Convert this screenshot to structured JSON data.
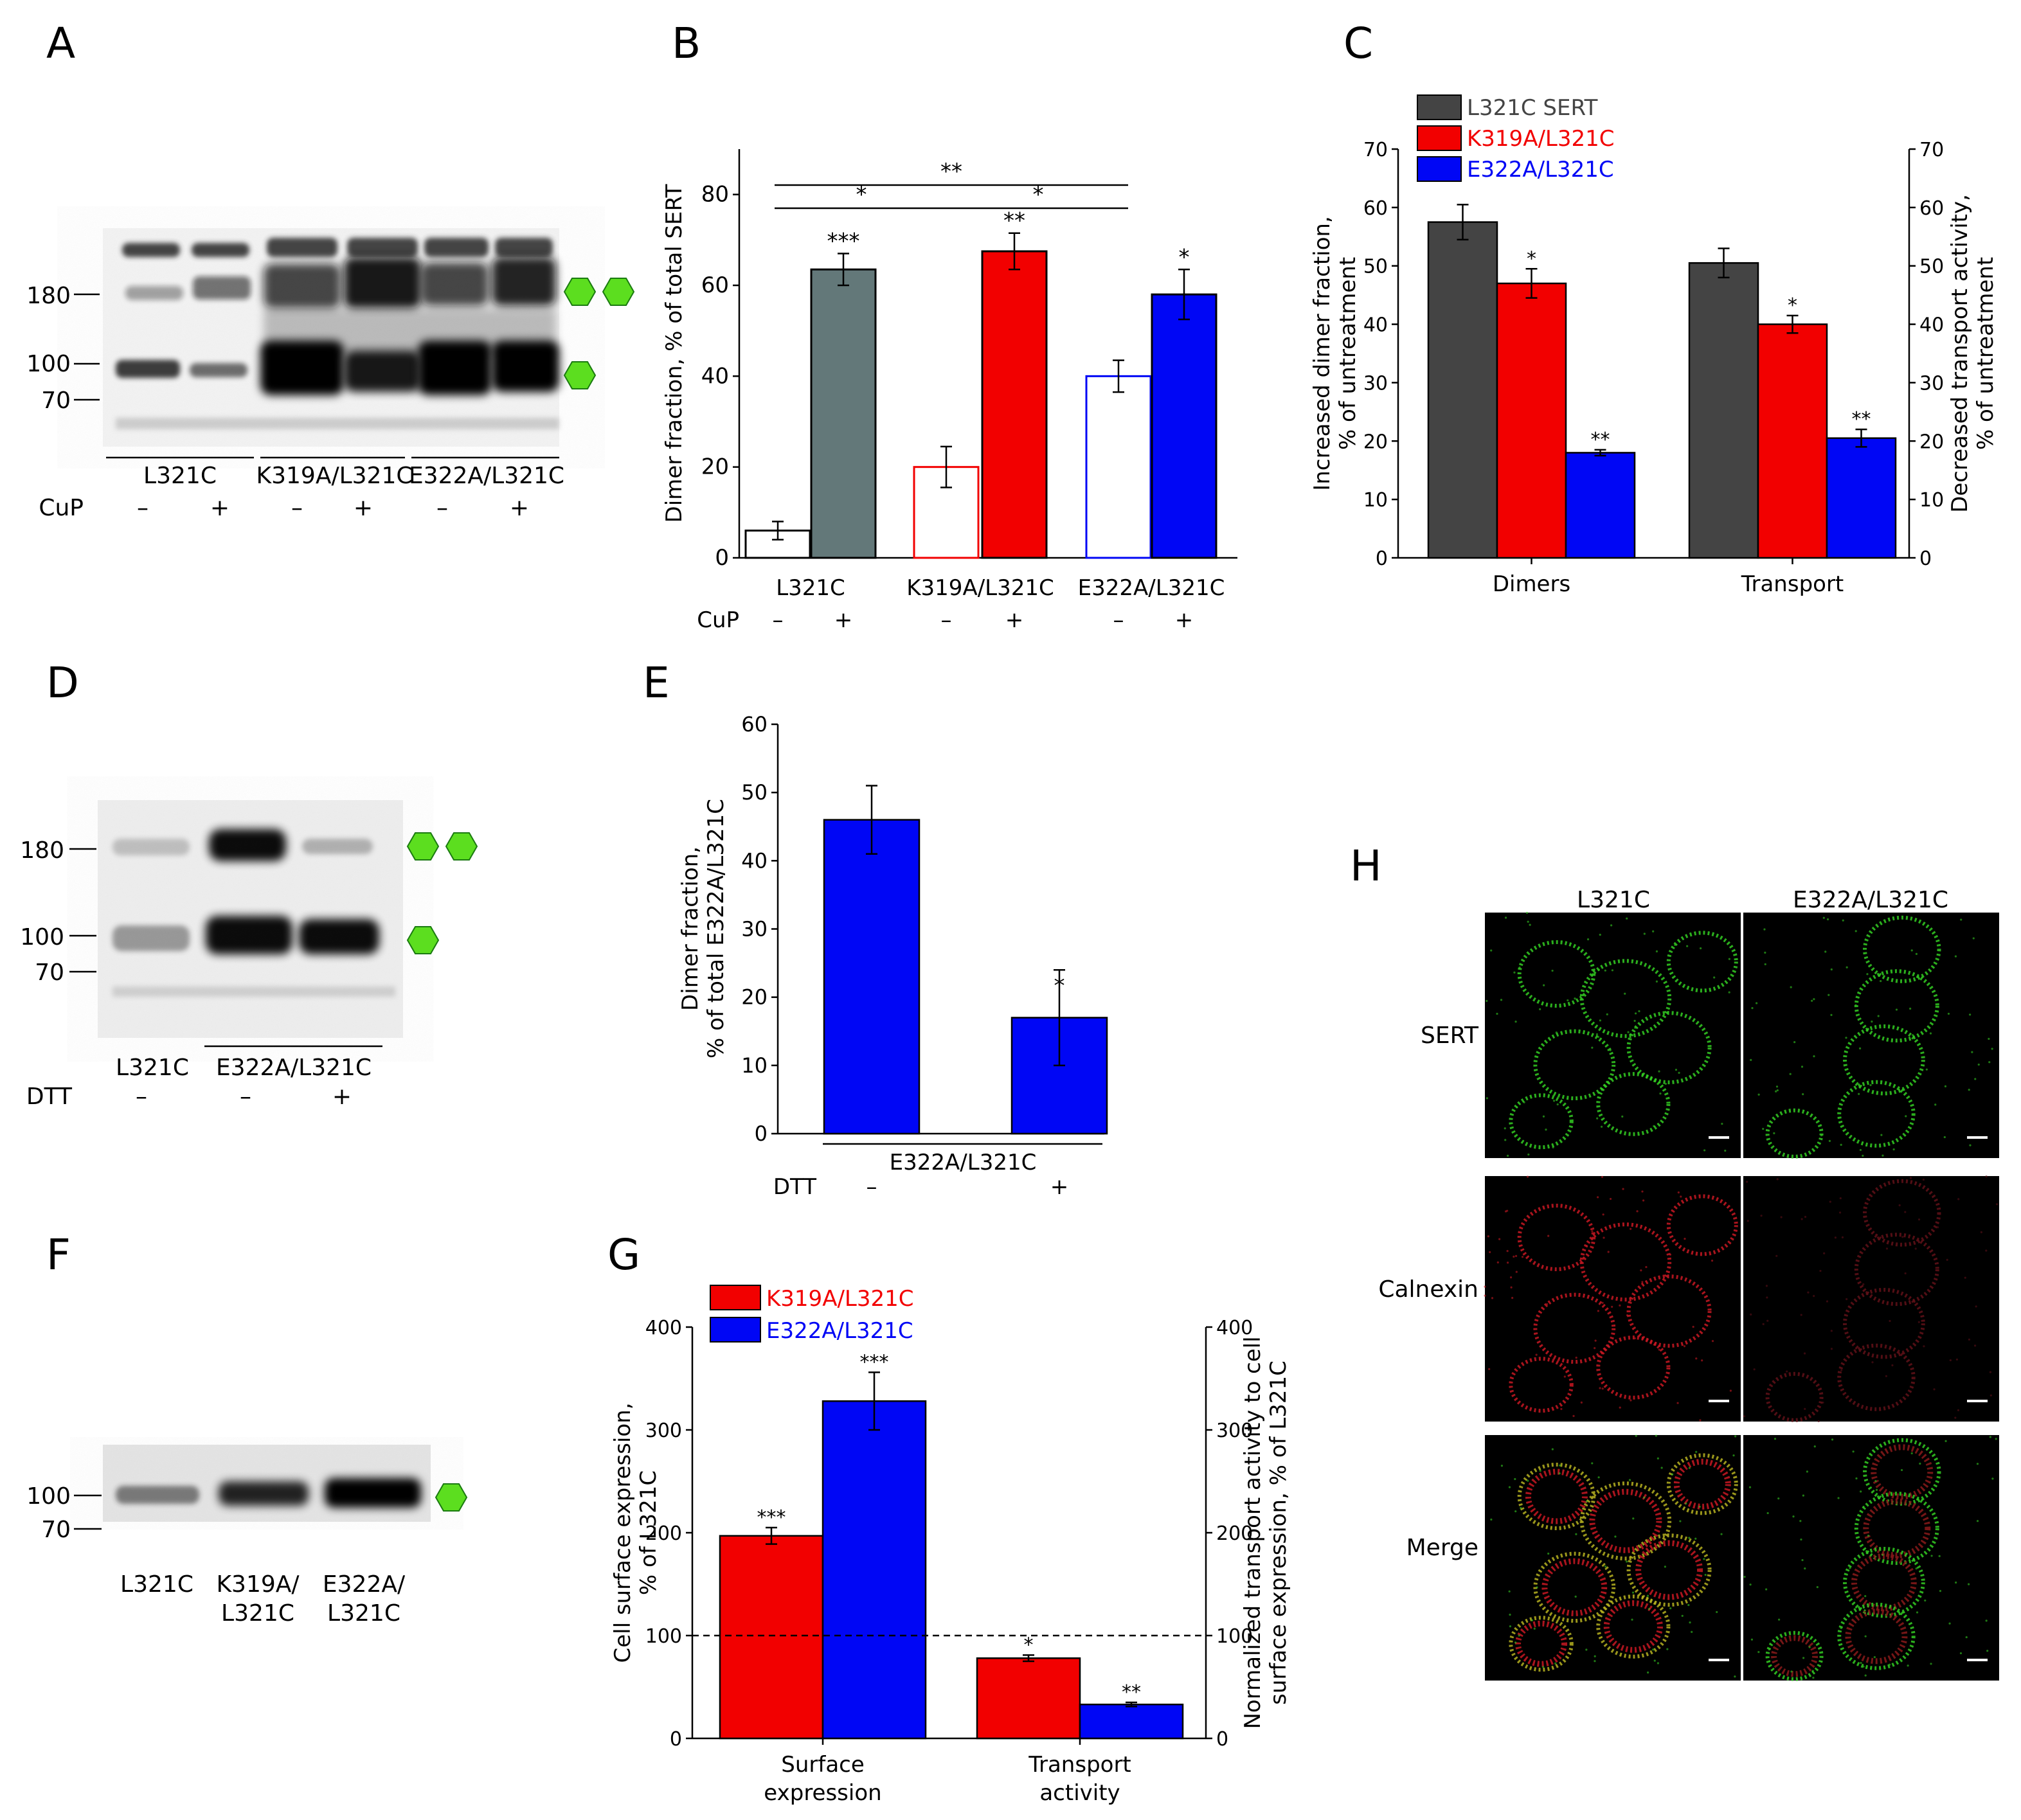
{
  "panels": {
    "A": "A",
    "B": "B",
    "C": "C",
    "D": "D",
    "E": "E",
    "F": "F",
    "G": "G",
    "H": "H"
  },
  "colors": {
    "gray": "#637879",
    "dark": "#444444",
    "red": "#f20000",
    "blue": "#0006f5",
    "green_hex": "#5cde1f",
    "cell_green": "#33cc22",
    "cell_red": "#c81822"
  },
  "blotA": {
    "markers": [
      "180",
      "100",
      "70"
    ],
    "groups": [
      "L321C",
      "K319A/L321C",
      "E322A/L321C"
    ],
    "treatment_label": "CuP",
    "treatments": [
      "–",
      "+",
      "–",
      "+",
      "–",
      "+"
    ]
  },
  "blotD": {
    "markers": [
      "180",
      "100",
      "70"
    ],
    "lanes": [
      "L321C",
      "E322A/L321C"
    ],
    "treatment_label": "DTT",
    "treatments": [
      "–",
      "–",
      "+"
    ]
  },
  "blotF": {
    "markers": [
      "100",
      "70"
    ],
    "lanes": [
      [
        "L321C"
      ],
      [
        "K319A/",
        "L321C"
      ],
      [
        "E322A/",
        "L321C"
      ]
    ]
  },
  "imagingH": {
    "columns": [
      "L321C",
      "E322A/L321C"
    ],
    "rows": [
      "SERT",
      "Calnexin",
      "Merge"
    ]
  },
  "chart_data": [
    {
      "panel": "B",
      "type": "bar",
      "ylabel": "Dimer fraction, % of total SERT",
      "ylim": [
        0,
        90
      ],
      "yticks": [
        0,
        20,
        40,
        60,
        80
      ],
      "groups": [
        "L321C",
        "K319A/L321C",
        "E322A/L321C"
      ],
      "treatment_label": "CuP",
      "treatments": [
        "–",
        "+",
        "–",
        "+",
        "–",
        "+"
      ],
      "bars": [
        {
          "group": "L321C",
          "treatment": "–",
          "value": 6,
          "error": 2,
          "sig": "",
          "filled": false,
          "color": "#000000"
        },
        {
          "group": "L321C",
          "treatment": "+",
          "value": 63.5,
          "error": 3.5,
          "sig": "***",
          "filled": true,
          "color": "#637879"
        },
        {
          "group": "K319A/L321C",
          "treatment": "–",
          "value": 20,
          "error": 4.5,
          "sig": "",
          "filled": false,
          "color": "#f20000"
        },
        {
          "group": "K319A/L321C",
          "treatment": "+",
          "value": 67.5,
          "error": 4,
          "sig": "**",
          "filled": true,
          "color": "#f20000"
        },
        {
          "group": "E322A/L321C",
          "treatment": "–",
          "value": 40,
          "error": 3.5,
          "sig": "",
          "filled": false,
          "color": "#0006f5"
        },
        {
          "group": "E322A/L321C",
          "treatment": "+",
          "value": 58,
          "error": 5.5,
          "sig": "*",
          "filled": true,
          "color": "#0006f5"
        }
      ],
      "brackets": [
        {
          "from": 0,
          "to": 4,
          "label": "**"
        },
        {
          "from": 0,
          "to": 2,
          "label": "*"
        },
        {
          "from": 2,
          "to": 4,
          "label": "*"
        }
      ]
    },
    {
      "panel": "C",
      "type": "bar",
      "ylabel_left": "Increased dimer fraction, % of untreatment",
      "ylabel_right": "Decreased transport activity, % of untreatment",
      "ylim": [
        0,
        70
      ],
      "yticks": [
        0,
        10,
        20,
        30,
        40,
        50,
        60,
        70
      ],
      "categories": [
        "Dimers",
        "Transport"
      ],
      "series": [
        {
          "name": "L321C SERT",
          "color": "#444444",
          "values": [
            57.5,
            50.5
          ],
          "errors": [
            3,
            2.5
          ],
          "sig": [
            "",
            ""
          ]
        },
        {
          "name": "K319A/L321C",
          "color": "#f20000",
          "values": [
            47,
            40
          ],
          "errors": [
            2.5,
            1.5
          ],
          "sig": [
            "*",
            "*"
          ]
        },
        {
          "name": "E322A/L321C",
          "color": "#0006f5",
          "values": [
            18,
            20.5
          ],
          "errors": [
            0.5,
            1.5
          ],
          "sig": [
            "**",
            "**"
          ]
        }
      ],
      "legend": "top-left"
    },
    {
      "panel": "E",
      "type": "bar",
      "ylabel": "Dimer fraction, % of total E322A/L321C",
      "ylim": [
        0,
        60
      ],
      "yticks": [
        0,
        10,
        20,
        30,
        40,
        50,
        60
      ],
      "group": "E322A/L321C",
      "treatment_label": "DTT",
      "treatments": [
        "–",
        "+"
      ],
      "values": [
        46,
        17
      ],
      "errors": [
        5,
        7
      ],
      "sig": [
        "",
        "*"
      ],
      "color": "#0006f5"
    },
    {
      "panel": "G",
      "type": "bar",
      "ylabel_left": "Cell surface expression, % of L321C",
      "ylabel_right": "Normalized transport activity to cell surface expression, % of L321C",
      "ylim": [
        0,
        400
      ],
      "yticks": [
        0,
        100,
        200,
        300,
        400
      ],
      "reference_line": 100,
      "categories": [
        [
          "Surface",
          "expression"
        ],
        [
          "Transport",
          "activity"
        ]
      ],
      "series": [
        {
          "name": "K319A/L321C",
          "color": "#f20000",
          "values": [
            197,
            78
          ],
          "errors": [
            8,
            3
          ],
          "sig": [
            "***",
            "*"
          ]
        },
        {
          "name": "E322A/L321C",
          "color": "#0006f5",
          "values": [
            328,
            33
          ],
          "errors": [
            28,
            2
          ],
          "sig": [
            "***",
            "**"
          ]
        }
      ],
      "legend": "top-left"
    }
  ]
}
